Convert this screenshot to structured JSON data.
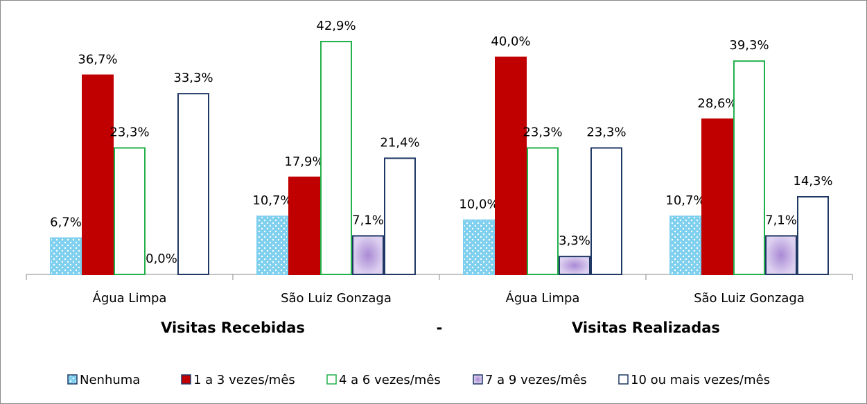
{
  "chart_data": {
    "type": "bar",
    "categories": [
      "Água Limpa",
      "São Luiz Gonzaga",
      "Água Limpa",
      "São Luiz Gonzaga"
    ],
    "group_labels": [
      "Visitas Recebidas",
      "-",
      "Visitas Realizadas"
    ],
    "ylim": [
      0,
      48
    ],
    "series": [
      {
        "name": "Nenhuma",
        "color": "#7fd0ee",
        "edge": "#7fd0ee",
        "pattern": "dots",
        "values": [
          6.7,
          10.7,
          10.0,
          10.7
        ],
        "value_labels": [
          "6,7%",
          "10,7%",
          "10,0%",
          "10,7%"
        ]
      },
      {
        "name": "1 a 3 vezes/mês",
        "color": "#c00000",
        "edge": "#c00000",
        "values": [
          36.7,
          17.9,
          40.0,
          28.6
        ],
        "value_labels": [
          "36,7%",
          "17,9%",
          "40,0%",
          "28,6%"
        ]
      },
      {
        "name": "4 a 6 vezes/mês",
        "color": "#ffffff",
        "edge": "#22b14c",
        "values": [
          23.3,
          42.9,
          23.3,
          39.3
        ],
        "value_labels": [
          "23,3%",
          "42,9%",
          "23,3%",
          "39,3%"
        ]
      },
      {
        "name": "7 a 9 vezes/mês",
        "color": "#c4b0e2",
        "edge": "#1f3864",
        "pattern": "glow",
        "values": [
          0.0,
          7.1,
          3.3,
          7.1
        ],
        "value_labels": [
          "0,0%",
          "7,1%",
          "3,3%",
          "7,1%"
        ]
      },
      {
        "name": "10 ou mais vezes/mês",
        "color": "#ffffff",
        "edge": "#1f3864",
        "values": [
          33.3,
          21.4,
          23.3,
          14.3
        ],
        "value_labels": [
          "33,3%",
          "21,4%",
          "23,3%",
          "14,3%"
        ]
      }
    ]
  }
}
